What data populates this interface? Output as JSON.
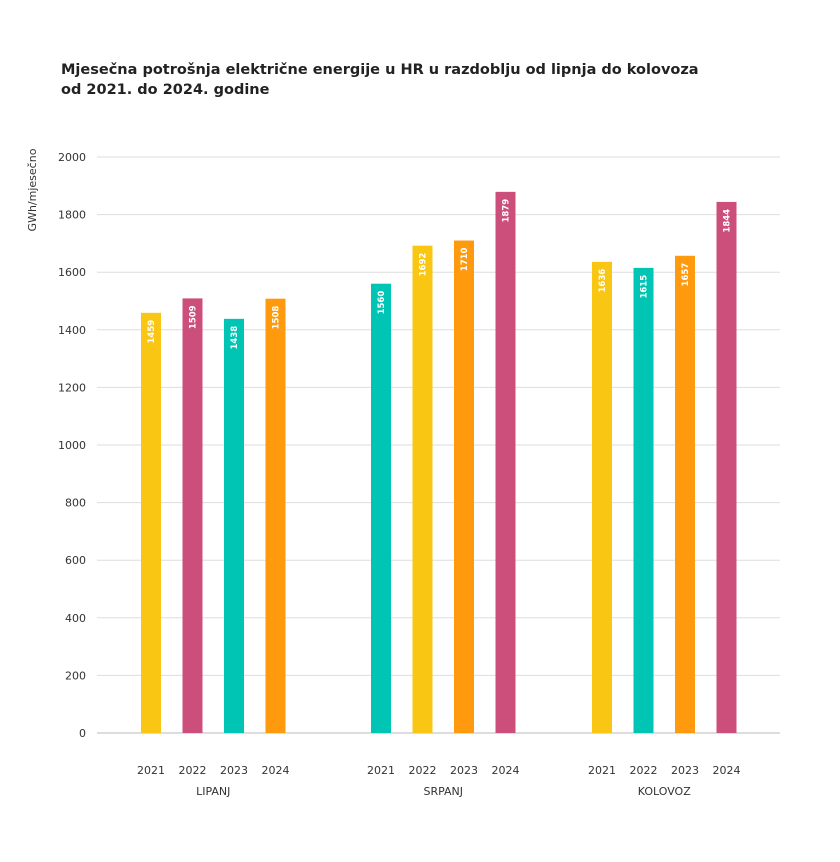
{
  "chart_data": {
    "type": "bar",
    "title": [
      "Mjesečna potrošnja električne energije u HR u razdoblju od lipnja do kolovoza",
      "od 2021. do 2024. godine"
    ],
    "y_label": "GWh/mjesečno",
    "ylim": [
      0,
      2000
    ],
    "yticks": [
      0,
      200,
      400,
      600,
      800,
      1000,
      1200,
      1400,
      1600,
      1800,
      2000
    ],
    "grid": true,
    "groups": [
      {
        "name": "LIPANJ",
        "categories": [
          "2021",
          "2022",
          "2023",
          "2024"
        ],
        "values": [
          1459,
          1509,
          1438,
          1508
        ],
        "colors": [
          "#f9c613",
          "#cc4e7a",
          "#00c4b4",
          "#ff9a0e"
        ]
      },
      {
        "name": "SRPANJ",
        "categories": [
          "2021",
          "2022",
          "2023",
          "2024"
        ],
        "values": [
          1560,
          1692,
          1710,
          1879
        ],
        "colors": [
          "#00c4b4",
          "#f9c613",
          "#ff9a0e",
          "#cc4e7a"
        ]
      },
      {
        "name": "KOLOVOZ",
        "categories": [
          "2021",
          "2022",
          "2023",
          "2024"
        ],
        "values": [
          1636,
          1615,
          1657,
          1844
        ],
        "colors": [
          "#f9c613",
          "#00c4b4",
          "#ff9a0e",
          "#cc4e7a"
        ]
      }
    ]
  }
}
